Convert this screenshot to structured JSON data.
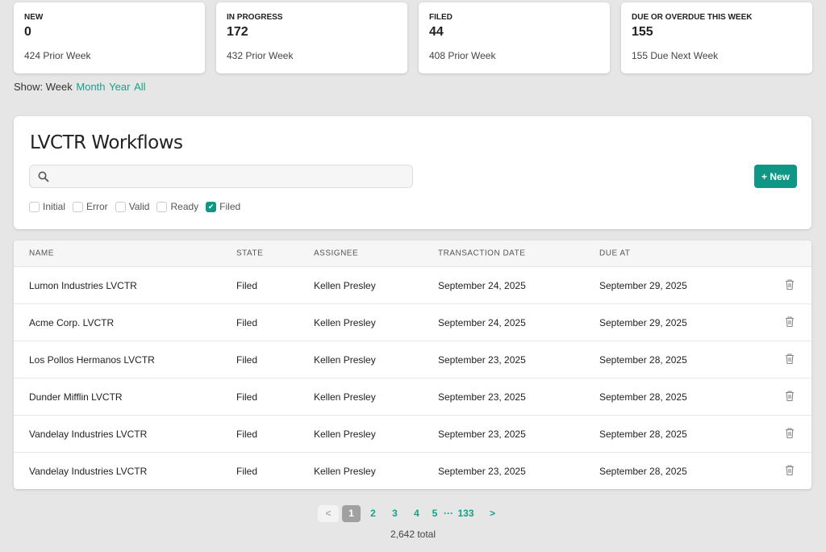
{
  "cards": [
    {
      "title": "NEW",
      "value": "0",
      "prior": "424 Prior Week"
    },
    {
      "title": "IN PROGRESS",
      "value": "172",
      "prior": "432 Prior Week"
    },
    {
      "title": "FILED",
      "value": "44",
      "prior": "408 Prior Week"
    },
    {
      "title": "DUE OR OVERDUE THIS WEEK",
      "value": "155",
      "prior": "155 Due Next Week"
    }
  ],
  "show": {
    "label": "Show:",
    "current": "Week",
    "links": [
      "Month",
      "Year",
      "All"
    ]
  },
  "panel": {
    "title": "LVCTR Workflows",
    "search_value": "",
    "new_label": "+ New",
    "filters": [
      {
        "label": "Initial",
        "checked": false
      },
      {
        "label": "Error",
        "checked": false
      },
      {
        "label": "Valid",
        "checked": false
      },
      {
        "label": "Ready",
        "checked": false
      },
      {
        "label": "Filed",
        "checked": true
      }
    ]
  },
  "table": {
    "headers": [
      "NAME",
      "STATE",
      "ASSIGNEE",
      "TRANSACTION DATE",
      "DUE AT"
    ],
    "rows": [
      [
        "Lumon Industries LVCTR",
        "Filed",
        "Kellen Presley",
        "September 24, 2025",
        "September 29, 2025"
      ],
      [
        "Acme Corp. LVCTR",
        "Filed",
        "Kellen Presley",
        "September 24, 2025",
        "September 29, 2025"
      ],
      [
        "Los Pollos Hermanos LVCTR",
        "Filed",
        "Kellen Presley",
        "September 23, 2025",
        "September 28, 2025"
      ],
      [
        "Dunder Mifflin LVCTR",
        "Filed",
        "Kellen Presley",
        "September 23, 2025",
        "September 28, 2025"
      ],
      [
        "Vandelay Industries LVCTR",
        "Filed",
        "Kellen Presley",
        "September 23, 2025",
        "September 28, 2025"
      ],
      [
        "Vandelay Industries LVCTR",
        "Filed",
        "Kellen Presley",
        "September 23, 2025",
        "September 28, 2025"
      ]
    ]
  },
  "pagination": {
    "prev": "<",
    "pages": [
      "1",
      "2",
      "3",
      "4",
      "5"
    ],
    "ellipsis": "···",
    "last": "133",
    "next": ">",
    "total": "2,642 total"
  }
}
